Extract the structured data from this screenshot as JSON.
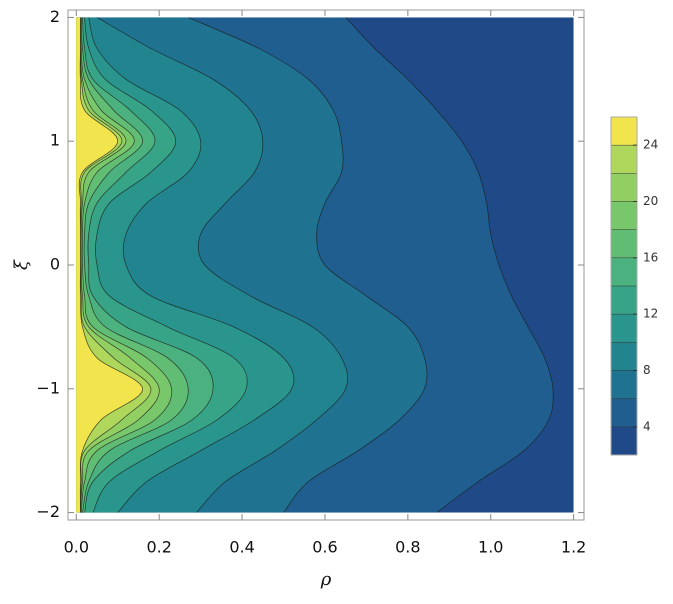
{
  "chart_data": {
    "type": "contour",
    "x_label": "ρ",
    "y_label": "ξ",
    "xlim": [
      -0.02,
      1.225
    ],
    "ylim": [
      -2.06,
      2.06
    ],
    "xticks": [
      {
        "value": 0,
        "label": "0.0"
      },
      0.2,
      0.4,
      0.6,
      0.8,
      {
        "value": 1,
        "label": "1.0"
      },
      1.2
    ],
    "yticks": [
      {
        "value": -2,
        "label": "−2"
      },
      {
        "value": -1,
        "label": "−1"
      },
      0,
      1,
      2
    ],
    "levels": [
      2,
      4,
      6,
      8,
      10,
      12,
      14,
      16,
      18,
      20,
      22,
      24,
      26
    ],
    "colors": [
      "#1f4a87",
      "#1f5e8e",
      "#1f7290",
      "#21848f",
      "#29958c",
      "#37a487",
      "#4bb17e",
      "#61bd74",
      "#79c76b",
      "#92cf63",
      "#aed75c",
      "#f2e44c"
    ],
    "colorbar_ticks": [
      4,
      8,
      12,
      16,
      20,
      24
    ],
    "y": [
      -2,
      -1.75,
      -1.5,
      -1.25,
      -1,
      -0.75,
      -0.5,
      -0.25,
      0,
      0.25,
      0.5,
      0.75,
      1,
      1.25,
      1.5,
      1.75,
      2
    ],
    "contours": [
      {
        "level": 4,
        "x": [
          0.87,
          0.97,
          1.08,
          1.14,
          1.15,
          1.13,
          1.09,
          1.05,
          1.02,
          1.0,
          0.99,
          0.97,
          0.93,
          0.87,
          0.8,
          0.72,
          0.65
        ]
      },
      {
        "level": 6,
        "x": [
          0.5,
          0.56,
          0.68,
          0.78,
          0.84,
          0.84,
          0.8,
          0.7,
          0.6,
          0.58,
          0.6,
          0.64,
          0.64,
          0.62,
          0.56,
          0.44,
          0.27
        ]
      },
      {
        "level": 8,
        "x": [
          0.29,
          0.36,
          0.48,
          0.58,
          0.65,
          0.64,
          0.57,
          0.42,
          0.31,
          0.3,
          0.36,
          0.43,
          0.45,
          0.42,
          0.33,
          0.18,
          0.05
        ]
      },
      {
        "level": 10,
        "x": [
          0.1,
          0.17,
          0.3,
          0.43,
          0.52,
          0.5,
          0.38,
          0.18,
          0.12,
          0.12,
          0.17,
          0.27,
          0.3,
          0.25,
          0.12,
          0.05,
          0.03
        ]
      },
      {
        "level": 12,
        "x": [
          0.04,
          0.08,
          0.2,
          0.34,
          0.41,
          0.38,
          0.22,
          0.08,
          0.05,
          0.05,
          0.08,
          0.18,
          0.24,
          0.18,
          0.07,
          0.03,
          0.02
        ]
      },
      {
        "level": 14,
        "x": [
          0.02,
          0.04,
          0.13,
          0.28,
          0.33,
          0.29,
          0.12,
          0.04,
          0.03,
          0.03,
          0.05,
          0.12,
          0.19,
          0.13,
          0.04,
          0.02,
          0.015
        ]
      },
      {
        "level": 16,
        "x": [
          0.015,
          0.03,
          0.08,
          0.23,
          0.27,
          0.22,
          0.07,
          0.03,
          0.02,
          0.02,
          0.03,
          0.08,
          0.16,
          0.09,
          0.03,
          0.015,
          0.012
        ]
      },
      {
        "level": 18,
        "x": [
          0.012,
          0.02,
          0.05,
          0.19,
          0.23,
          0.17,
          0.04,
          0.02,
          0.015,
          0.015,
          0.02,
          0.05,
          0.14,
          0.06,
          0.02,
          0.012,
          0.01
        ]
      },
      {
        "level": 20,
        "x": [
          0.01,
          0.015,
          0.03,
          0.15,
          0.2,
          0.13,
          0.03,
          0.015,
          0.012,
          0.012,
          0.015,
          0.03,
          0.12,
          0.04,
          0.015,
          0.01,
          0.01
        ]
      },
      {
        "level": 22,
        "x": [
          0.01,
          0.012,
          0.02,
          0.11,
          0.18,
          0.09,
          0.02,
          0.012,
          0.01,
          0.01,
          0.012,
          0.02,
          0.11,
          0.03,
          0.012,
          0.01,
          0.01
        ]
      },
      {
        "level": 24,
        "x": [
          0.01,
          0.01,
          0.015,
          0.06,
          0.16,
          0.05,
          0.015,
          0.01,
          0.01,
          0.01,
          0.01,
          0.015,
          0.1,
          0.02,
          0.01,
          0.01,
          0.01
        ]
      }
    ]
  }
}
